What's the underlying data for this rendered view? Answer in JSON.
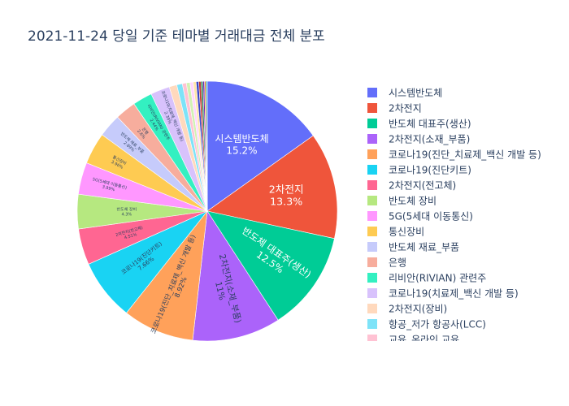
{
  "chart_data": {
    "type": "pie",
    "title": "2021-11-24 당일 기준 테마별 거래대금 전체 분포",
    "legend_position": "right",
    "slices": [
      {
        "label": "시스템반도체",
        "value": 15.2,
        "color": "#636efa",
        "shown_label": "시스템반도체",
        "shown_value": "15.2%"
      },
      {
        "label": "2차전지",
        "value": 13.3,
        "color": "#ef553b",
        "shown_label": "2차전지",
        "shown_value": "13.3%"
      },
      {
        "label": "반도체 대표주(생산)",
        "value": 12.5,
        "color": "#00cc96",
        "shown_label": "반도체 대표주(생산)",
        "shown_value": "12.5%"
      },
      {
        "label": "2차전지(소재_부품)",
        "value": 11,
        "color": "#ab63fa",
        "shown_label": "2차전지(소재_부품)",
        "shown_value": "11%"
      },
      {
        "label": "코로나19(진단_치료제_백신 개발 등)",
        "value": 8.92,
        "color": "#ffa15a",
        "shown_label": "코로나19(진단_치료제_백신 개발 등)",
        "shown_value": "8.92%"
      },
      {
        "label": "코로나19(진단키트)",
        "value": 7.66,
        "color": "#19d3f3",
        "shown_label": "코로나19(진단키트)",
        "shown_value": "7.66%"
      },
      {
        "label": "2차전지(전고체)",
        "value": 4.51,
        "color": "#ff6692",
        "shown_label": "2차전지(전고체)",
        "shown_value": "4.51%"
      },
      {
        "label": "반도체 장비",
        "value": 4.3,
        "color": "#b6e880",
        "shown_label": "반도체 장비",
        "shown_value": "4.3%"
      },
      {
        "label": "5G(5세대 이동통신)",
        "value": 3.99,
        "color": "#ff97ff",
        "shown_label": "5G(5세대 이동통신)",
        "shown_value": "3.99%"
      },
      {
        "label": "통신장비",
        "value": 3.96,
        "color": "#fecb52",
        "shown_label": "통신장비",
        "shown_value": "3.96%"
      },
      {
        "label": "반도체 재료_부품",
        "value": 2.89,
        "color": "#c6cbfb",
        "shown_label": "반도체 재료_부품",
        "shown_value": "2.89%"
      },
      {
        "label": "은행",
        "value": 2.6,
        "color": "#f7ad9d",
        "shown_label": "은행",
        "shown_value": "2.6%"
      },
      {
        "label": "리비안(RIVIAN) 관련주",
        "value": 2.44,
        "color": "#33f0c1",
        "shown_label": "리비안(RIVIAN) 관련주",
        "shown_value": "2.44%"
      },
      {
        "label": "코로나19(치료제_백신 개발 등)",
        "value": 2.39,
        "color": "#d8c2fc",
        "shown_label": "코로나19(치료제_백신 개발 등)",
        "shown_value": "2.39%"
      },
      {
        "label": "2차전지(장비)",
        "value": 0.95,
        "color": "#ffd9bd",
        "shown_label": "",
        "shown_value": ""
      },
      {
        "label": "항공_저가 항공사(LCC)",
        "value": 0.7,
        "color": "#7ee3f8",
        "shown_label": "",
        "shown_value": ""
      },
      {
        "label": "교육_온라인 교육",
        "value": 0.5,
        "color": "#ffc2d3",
        "shown_label": "",
        "shown_value": ""
      },
      {
        "label": "",
        "value": 0.45,
        "color": "#d2f1b3",
        "shown_label": "",
        "shown_value": ""
      },
      {
        "label": "",
        "value": 0.4,
        "color": "#ffd5ff",
        "shown_label": "",
        "shown_value": ""
      },
      {
        "label": "",
        "value": 0.36,
        "color": "#fee5a8",
        "shown_label": "",
        "shown_value": ""
      },
      {
        "label": "",
        "value": 0.32,
        "color": "#3a44c8",
        "shown_label": "",
        "shown_value": ""
      },
      {
        "label": "",
        "value": 0.28,
        "color": "#c0392b",
        "shown_label": "",
        "shown_value": ""
      },
      {
        "label": "",
        "value": 0.24,
        "color": "#1e7d4f",
        "shown_label": "",
        "shown_value": ""
      },
      {
        "label": "",
        "value": 0.2,
        "color": "#6a1fb3",
        "shown_label": "",
        "shown_value": ""
      },
      {
        "label": "",
        "value": 0.18,
        "color": "#e67e22",
        "shown_label": "",
        "shown_value": ""
      },
      {
        "label": "",
        "value": 0.16,
        "color": "#0f9fb8",
        "shown_label": "",
        "shown_value": ""
      }
    ],
    "legend_visible_count": 17
  }
}
